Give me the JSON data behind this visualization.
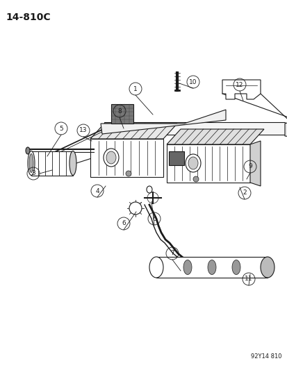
{
  "title_code": "14-810C",
  "watermark": "92Y14 810",
  "bg_color": "#ffffff",
  "line_color": "#1a1a1a",
  "gray_light": "#cccccc",
  "gray_med": "#999999",
  "gray_dark": "#555555",
  "label_font_size": 6.5,
  "title_font_size": 10,
  "watermark_font_size": 6
}
